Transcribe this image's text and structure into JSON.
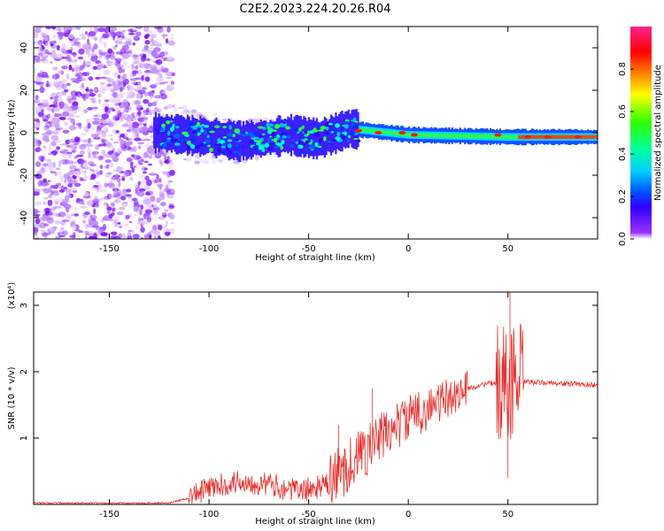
{
  "title": "C2E2.2023.224.20.26.R04",
  "chart_data": [
    {
      "type": "heatmap",
      "xlabel": "Height of straight line (km)",
      "ylabel": "Frequency (Hz)",
      "xlim": [
        -188,
        95
      ],
      "ylim": [
        -50,
        50
      ],
      "x_ticks": [
        -150,
        -100,
        -50,
        0,
        50
      ],
      "y_ticks": [
        -40,
        -20,
        0,
        20,
        40
      ],
      "colorbar": {
        "label": "Normalized spectral amplitude",
        "range": [
          0,
          1
        ],
        "ticks": [
          "0.0",
          "0.2",
          "0.4",
          "0.6",
          "0.8"
        ],
        "colors": [
          "#ffffff",
          "#8000ff",
          "#0000ff",
          "#00ffff",
          "#00ff00",
          "#ffff00",
          "#ff8000",
          "#ff0000",
          "#ff00a0"
        ]
      },
      "ridge": [
        {
          "x": -125,
          "f": 0
        },
        {
          "x": -100,
          "f": -2
        },
        {
          "x": -85,
          "f": -4
        },
        {
          "x": -60,
          "f": -1
        },
        {
          "x": -45,
          "f": -3
        },
        {
          "x": -30,
          "f": 2
        },
        {
          "x": -20,
          "f": 1
        },
        {
          "x": 0,
          "f": -1
        },
        {
          "x": 50,
          "f": -2
        },
        {
          "x": 95,
          "f": -2
        }
      ]
    },
    {
      "type": "line",
      "xlabel": "Height of straight line (km)",
      "ylabel": "SNR (10 * v/v)",
      "y_multiplier": "(x10⁴)",
      "xlim": [
        -188,
        95
      ],
      "ylim": [
        0,
        3.2
      ],
      "x_ticks": [
        -150,
        -100,
        -50,
        0,
        50
      ],
      "y_ticks": [
        1,
        2,
        3
      ],
      "color": "#e8302e",
      "envelope": [
        {
          "x": -188,
          "y": 0.02
        },
        {
          "x": -120,
          "y": 0.02
        },
        {
          "x": -110,
          "y": 0.1
        },
        {
          "x": -100,
          "y": 0.25
        },
        {
          "x": -85,
          "y": 0.35
        },
        {
          "x": -70,
          "y": 0.3
        },
        {
          "x": -55,
          "y": 0.2
        },
        {
          "x": -40,
          "y": 0.3
        },
        {
          "x": -30,
          "y": 0.6
        },
        {
          "x": -20,
          "y": 0.85
        },
        {
          "x": -10,
          "y": 1.1
        },
        {
          "x": 0,
          "y": 1.3
        },
        {
          "x": 10,
          "y": 1.45
        },
        {
          "x": 20,
          "y": 1.6
        },
        {
          "x": 30,
          "y": 1.75
        },
        {
          "x": 40,
          "y": 1.82
        },
        {
          "x": 55,
          "y": 1.85
        },
        {
          "x": 95,
          "y": 1.8
        }
      ],
      "spikes": [
        {
          "x": -18,
          "y": 1.75
        },
        {
          "x": -35,
          "y": 1.2
        },
        {
          "x": 51,
          "y": 3.2
        },
        {
          "x": 50,
          "y": 0.4
        },
        {
          "x": 47,
          "y": 2.1
        },
        {
          "x": 53,
          "y": 2.6
        }
      ]
    }
  ]
}
